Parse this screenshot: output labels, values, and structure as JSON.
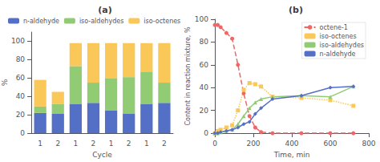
{
  "chart_data": [
    {
      "type": "bar",
      "title": "(a)",
      "stacked": true,
      "grid": false,
      "legend": "upper left",
      "categories": [
        "1",
        "2",
        "1",
        "2",
        "1",
        "2",
        "1",
        "2"
      ],
      "series": [
        {
          "name": "n-aldehyde",
          "color": "#5470c6",
          "values": [
            22,
            21,
            32,
            33,
            25,
            21,
            32,
            33
          ]
        },
        {
          "name": "iso-aldehydes",
          "color": "#91cc75",
          "values": [
            7,
            11,
            41,
            22,
            35,
            40,
            35,
            22
          ]
        },
        {
          "name": "iso-octenes",
          "color": "#fac858",
          "values": [
            29,
            13,
            25,
            43,
            38,
            37,
            31,
            43
          ]
        }
      ],
      "xlabel": "Cycle",
      "ylabel": "%",
      "ylim": [
        0,
        110
      ],
      "yticks": [
        0,
        20,
        40,
        60,
        80,
        100
      ]
    },
    {
      "type": "line",
      "title": "(b)",
      "grid": false,
      "legend": "upper right",
      "x": [
        0,
        15,
        30,
        60,
        90,
        120,
        150,
        180,
        210,
        240,
        300,
        450,
        600,
        720
      ],
      "series": [
        {
          "name": "octene-1",
          "color": "#ee6666",
          "marker": "circle",
          "line_style": "dashed",
          "values": [
            95,
            95,
            93,
            88,
            83,
            60,
            35,
            15,
            5,
            1,
            0,
            0,
            0,
            0
          ]
        },
        {
          "name": "iso-octenes",
          "color": "#fac858",
          "marker": "square",
          "line_style": "dotted",
          "values": [
            0,
            2,
            3,
            5,
            7,
            20,
            38,
            44,
            43,
            41,
            32,
            31,
            29,
            24
          ]
        },
        {
          "name": "iso-aldehydes",
          "color": "#91cc75",
          "marker": "triangle",
          "line_style": "solid",
          "values": [
            0,
            0,
            1,
            2,
            3,
            8,
            15,
            22,
            27,
            30,
            32,
            33,
            32,
            41
          ]
        },
        {
          "name": "n-aldehyde",
          "color": "#5470c6",
          "marker": "diamond",
          "line_style": "solid",
          "values": [
            0,
            0,
            1,
            2,
            3,
            5,
            8,
            10,
            17,
            22,
            30,
            33,
            40,
            41
          ]
        }
      ],
      "xlabel": "Time, min",
      "ylabel": "Content in reaction mixture, %",
      "xlim": [
        0,
        800
      ],
      "xticks": [
        0,
        200,
        400,
        600,
        800
      ],
      "ylim": [
        0,
        100
      ],
      "yticks": [
        0,
        20,
        40,
        60,
        80,
        100
      ]
    }
  ]
}
